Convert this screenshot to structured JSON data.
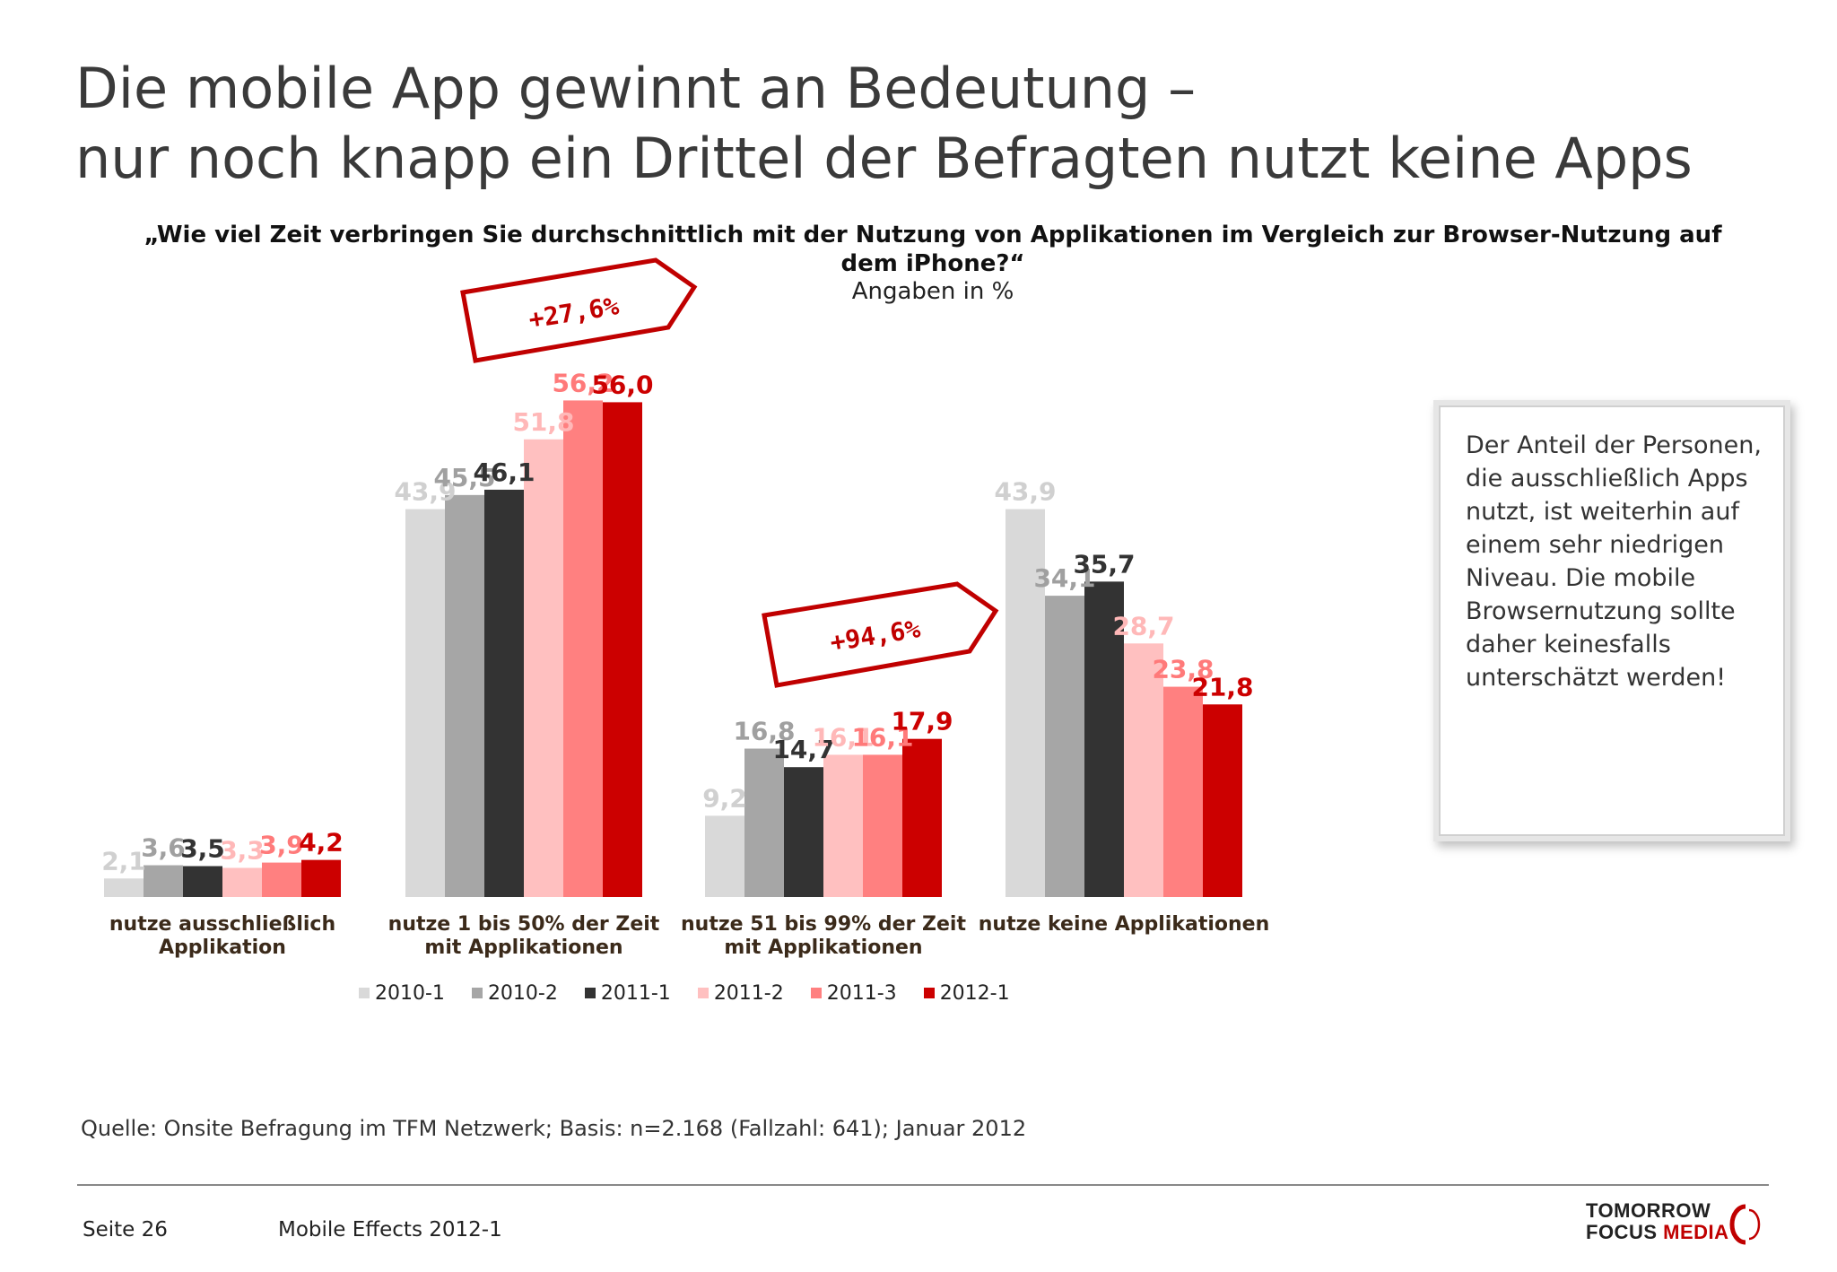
{
  "title": {
    "line1": "Die mobile App gewinnt an Bedeutung –",
    "line2": "nur noch knapp ein Drittel der Befragten nutzt keine Apps"
  },
  "question": "„Wie viel Zeit verbringen Sie durchschnittlich mit der Nutzung von Applikationen im Vergleich zur Browser-Nutzung auf dem iPhone?“",
  "units": "Angaben in %",
  "chart_data": {
    "type": "bar",
    "categories": [
      "nutze ausschließlich Applikation",
      "nutze 1 bis 50% der Zeit mit Applikationen",
      "nutze 51 bis 99% der Zeit mit Applikationen",
      "nutze keine Applikationen"
    ],
    "series": [
      {
        "name": "2010-1",
        "color": "#d9d9d9",
        "values": [
          2.1,
          43.9,
          9.2,
          43.9
        ],
        "labels": [
          "2,1",
          "43,9",
          "9,2",
          "43,9"
        ]
      },
      {
        "name": "2010-2",
        "color": "#a6a6a6",
        "values": [
          3.6,
          45.5,
          16.8,
          34.1
        ],
        "labels": [
          "3,6",
          "45,5",
          "16,8",
          "34,1"
        ]
      },
      {
        "name": "2011-1",
        "color": "#333333",
        "values": [
          3.5,
          46.1,
          14.7,
          35.7
        ],
        "labels": [
          "3,5",
          "46,1",
          "14,7",
          "35,7"
        ]
      },
      {
        "name": "2011-2",
        "color": "#ffc0c0",
        "values": [
          3.3,
          51.8,
          16.1,
          28.7
        ],
        "labels": [
          "3,3",
          "51,8",
          "16,1",
          "28,7"
        ]
      },
      {
        "name": "2011-3",
        "color": "#ff8080",
        "values": [
          3.9,
          56.2,
          16.1,
          23.8
        ],
        "labels": [
          "3,9",
          "56,2",
          "16,1",
          "23,8"
        ]
      },
      {
        "name": "2012-1",
        "color": "#cc0000",
        "values": [
          4.2,
          56.0,
          17.9,
          21.8
        ],
        "labels": [
          "4,2",
          "56,0",
          "17,9",
          "21,8"
        ]
      }
    ],
    "ylim": [
      0,
      60
    ],
    "grid": false,
    "legend": "bottom",
    "annotations": [
      "+27,6%",
      "+94,6%"
    ]
  },
  "note": "Der Anteil der Personen, die ausschließlich Apps nutzt, ist weiterhin auf einem sehr niedrigen Niveau. Die mobile Browsernutzung sollte daher keinesfalls unterschätzt werden!",
  "source": "Quelle: Onsite Befragung im TFM Netzwerk; Basis: n=2.168 (Fallzahl: 641); Januar 2012",
  "footer": {
    "page": "Seite 26",
    "report": "Mobile Effects 2012-1",
    "logo_line1": "TOMORROW",
    "logo_line2a": "FOCUS",
    "logo_line2b": "MEDIA"
  }
}
